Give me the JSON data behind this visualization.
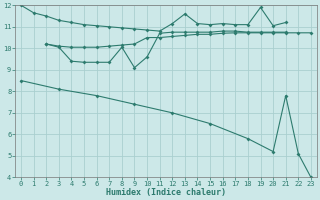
{
  "bg_color": "#cce8e8",
  "grid_color": "#aacfcf",
  "line_color": "#2d7b6e",
  "xlabel": "Humidex (Indice chaleur)",
  "xlim": [
    -0.5,
    23.5
  ],
  "ylim": [
    4,
    12
  ],
  "xticks": [
    0,
    1,
    2,
    3,
    4,
    5,
    6,
    7,
    8,
    9,
    10,
    11,
    12,
    13,
    14,
    15,
    16,
    17,
    18,
    19,
    20,
    21,
    22,
    23
  ],
  "yticks": [
    4,
    5,
    6,
    7,
    8,
    9,
    10,
    11,
    12
  ],
  "series1_x": [
    0,
    1,
    2,
    3,
    4,
    5,
    6,
    7,
    8,
    9,
    10,
    11,
    12,
    13,
    14,
    15,
    16,
    17,
    18,
    19,
    20,
    21
  ],
  "series1_y": [
    12.0,
    11.65,
    11.5,
    11.3,
    11.2,
    11.1,
    11.05,
    11.0,
    10.95,
    10.9,
    10.85,
    10.8,
    11.15,
    11.6,
    11.15,
    11.1,
    11.15,
    11.1,
    11.1,
    11.9,
    11.05,
    11.2
  ],
  "series2_x": [
    2,
    3,
    4,
    5,
    6,
    7,
    8,
    9,
    10,
    11,
    12,
    13,
    14,
    15,
    16,
    17,
    18,
    19,
    20,
    21
  ],
  "series2_y": [
    10.2,
    10.05,
    9.4,
    9.35,
    9.35,
    9.35,
    10.05,
    9.1,
    9.6,
    10.7,
    10.75,
    10.75,
    10.75,
    10.75,
    10.8,
    10.8,
    10.75,
    10.75,
    10.75,
    10.75
  ],
  "series3_x": [
    2,
    3,
    4,
    5,
    6,
    7,
    8,
    9,
    10,
    11,
    12,
    13,
    14,
    15,
    16,
    17,
    18,
    19,
    20,
    21,
    22,
    23
  ],
  "series3_y": [
    10.2,
    10.1,
    10.05,
    10.05,
    10.05,
    10.1,
    10.15,
    10.2,
    10.5,
    10.5,
    10.55,
    10.6,
    10.65,
    10.65,
    10.7,
    10.72,
    10.72,
    10.72,
    10.72,
    10.72,
    10.72,
    10.72
  ],
  "series4_x": [
    0,
    3,
    6,
    9,
    12,
    15,
    18,
    20,
    21,
    22,
    23
  ],
  "series4_y": [
    8.5,
    8.1,
    7.8,
    7.4,
    7.0,
    6.5,
    5.8,
    5.2,
    7.8,
    5.1,
    4.0
  ],
  "marker_size": 2.0,
  "line_width": 0.8,
  "tick_fontsize": 5.0,
  "xlabel_fontsize": 6.0
}
